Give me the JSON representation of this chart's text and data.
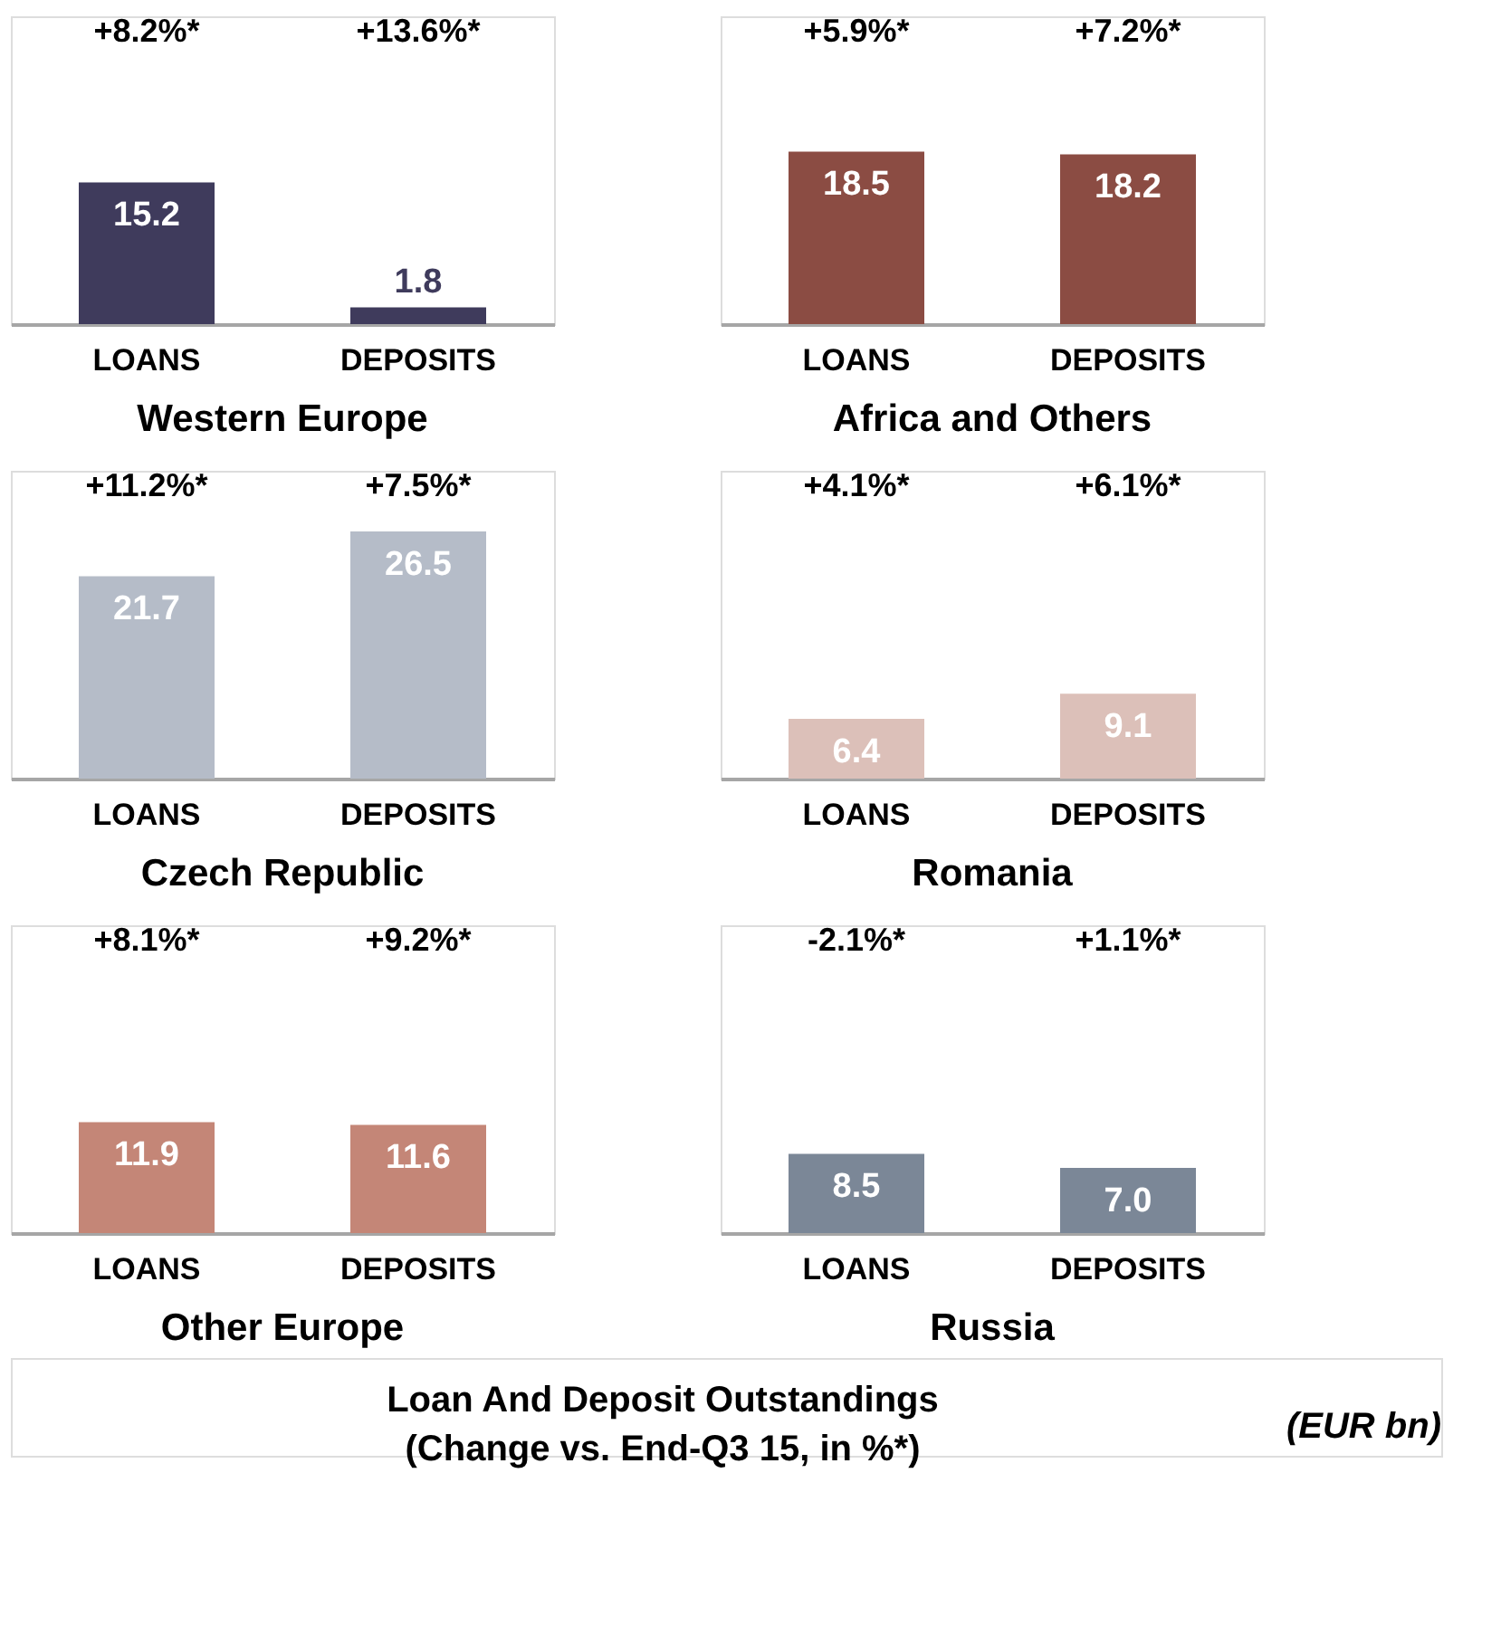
{
  "chart_data": [
    {
      "type": "bar",
      "title": "Western Europe",
      "categories": [
        "LOANS",
        "DEPOSITS"
      ],
      "values": [
        15.2,
        1.8
      ],
      "color": "#3f3b5c",
      "ylim": [
        0,
        33
      ],
      "data_labels": true,
      "annotations": [
        "+8.2%*",
        "+13.6%*"
      ]
    },
    {
      "type": "bar",
      "title": "Africa and Others",
      "categories": [
        "LOANS",
        "DEPOSITS"
      ],
      "values": [
        18.5,
        18.2
      ],
      "color": "#8b4c43",
      "ylim": [
        0,
        33
      ],
      "data_labels": true,
      "annotations": [
        "+5.9%*",
        "+7.2%*"
      ]
    },
    {
      "type": "bar",
      "title": "Czech Republic",
      "categories": [
        "LOANS",
        "DEPOSITS"
      ],
      "values": [
        21.7,
        26.5
      ],
      "color": "#b5bcc8",
      "ylim": [
        0,
        33
      ],
      "data_labels": true,
      "annotations": [
        "+11.2%*",
        "+7.5%*"
      ]
    },
    {
      "type": "bar",
      "title": "Romania",
      "categories": [
        "LOANS",
        "DEPOSITS"
      ],
      "values": [
        6.4,
        9.1
      ],
      "color": "#dcc0b9",
      "ylim": [
        0,
        33
      ],
      "data_labels": true,
      "annotations": [
        "+4.1%*",
        "+6.1%*"
      ]
    },
    {
      "type": "bar",
      "title": "Other Europe",
      "categories": [
        "LOANS",
        "DEPOSITS"
      ],
      "values": [
        11.9,
        11.6
      ],
      "color": "#c48677",
      "ylim": [
        0,
        33
      ],
      "data_labels": true,
      "annotations": [
        "+8.1%*",
        "+9.2%*"
      ]
    },
    {
      "type": "bar",
      "title": "Russia",
      "categories": [
        "LOANS",
        "DEPOSITS"
      ],
      "values": [
        8.5,
        7.0
      ],
      "value_labels": [
        "8.5",
        "7.0"
      ],
      "color": "#7b8797",
      "ylim": [
        0,
        33
      ],
      "annotations": [
        "-2.1%*",
        "+1.1%*"
      ]
    },
    {
      "type": "other",
      "title": "Loan And Deposit Outstandings\n(Change vs. End-Q3 15, in %*)",
      "annotations": [
        "(EUR bn)"
      ]
    }
  ]
}
